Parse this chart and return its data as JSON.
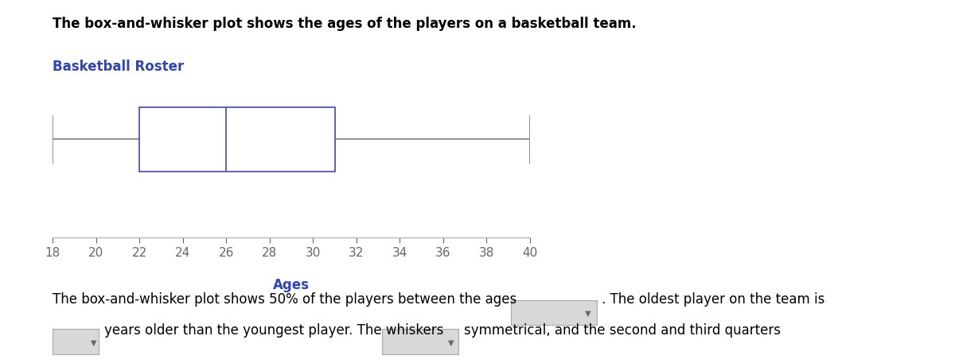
{
  "title": "The box-and-whisker plot shows the ages of the players on a basketball team.",
  "chart_title": "Basketball Roster",
  "xlabel": "Ages",
  "whisker_min": 18,
  "q1": 22,
  "median": 26,
  "q3": 31,
  "whisker_max": 40,
  "xmin": 18,
  "xmax": 40,
  "xticks": [
    18,
    20,
    22,
    24,
    26,
    28,
    30,
    32,
    34,
    36,
    38,
    40
  ],
  "box_color": "#5555aa",
  "box_facecolor": "white",
  "whisker_color": "#888888",
  "cap_color": "#888888",
  "title_fontsize": 12,
  "chart_title_color": "#3344aa",
  "chart_title_fontsize": 12,
  "xlabel_color": "#3344aa",
  "xlabel_fontsize": 12,
  "tick_fontsize": 11,
  "text1": "The box-and-whisker plot shows 50% of the players between the ages",
  "text2": ". The oldest player on the team is",
  "text3": "years older than the youngest player. The whiskers",
  "text4": "symmetrical, and the second and third quarters",
  "text5": "symmetrical.",
  "text_fontsize": 12,
  "dropdown_color": "#d8d8d8",
  "dropdown_border": "#aaaaaa"
}
